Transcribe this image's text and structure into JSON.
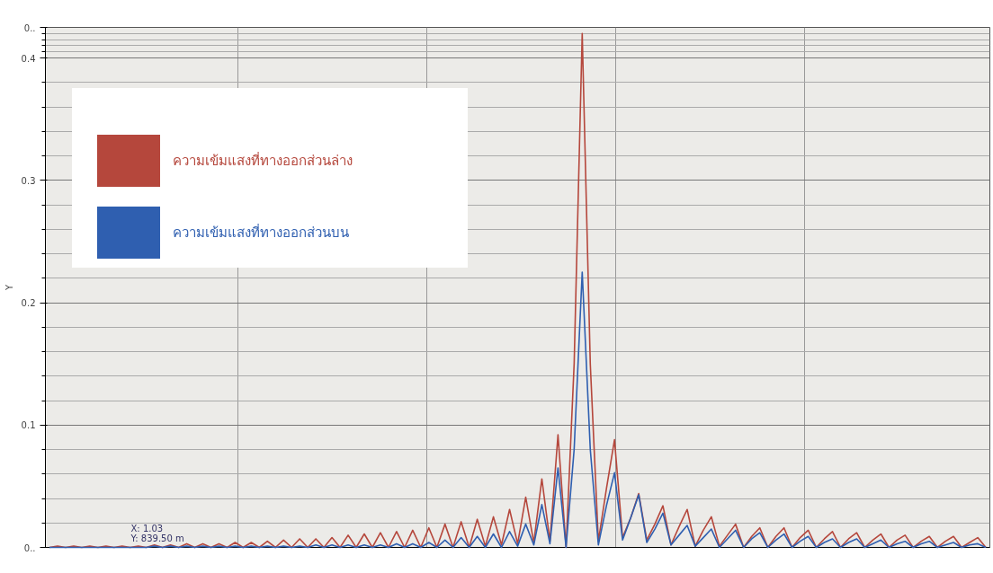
{
  "chart_data": {
    "type": "line",
    "ylabel": "Y",
    "categories": [
      null,
      null,
      null,
      null,
      null,
      null,
      null,
      null,
      null,
      null,
      null,
      null,
      null,
      null,
      null,
      null,
      null,
      null,
      null,
      null,
      null,
      null,
      null,
      null,
      null,
      null,
      null,
      null,
      null,
      null,
      null,
      null,
      null,
      null,
      null,
      null,
      null,
      null,
      null,
      null,
      null,
      null,
      null,
      null,
      null,
      null,
      null,
      null,
      null,
      null,
      null,
      null,
      null,
      null,
      null,
      null,
      null,
      null,
      null,
      null,
      null,
      null,
      null,
      null,
      null,
      null,
      null,
      null,
      null,
      null,
      null,
      null,
      null,
      null,
      null,
      null,
      null,
      null,
      null,
      null,
      null,
      null,
      null,
      null,
      null,
      null,
      null,
      null,
      null,
      null,
      null,
      null,
      null,
      null,
      null,
      null,
      null,
      null,
      null,
      null,
      null,
      null,
      null,
      null,
      null,
      null,
      null,
      null,
      null,
      null,
      null,
      null,
      null,
      null,
      null,
      null,
      null
    ],
    "series": [
      {
        "name": "ความเข้มแสงที่ทางออกส่วนล่าง",
        "color": "#b5473c",
        "values": [
          0,
          0.001,
          0,
          0.001,
          0,
          0.001,
          0,
          0.001,
          0,
          0.001,
          0,
          0.001,
          0,
          0.002,
          0,
          0.002,
          0,
          0.003,
          0,
          0.003,
          0,
          0.003,
          0,
          0.004,
          0,
          0.004,
          0,
          0.005,
          0,
          0.006,
          0,
          0.007,
          0,
          0.007,
          0,
          0.008,
          0,
          0.01,
          0,
          0.011,
          0,
          0.012,
          0,
          0.013,
          0,
          0.014,
          0,
          0.016,
          0,
          0.019,
          0,
          0.021,
          0,
          0.023,
          0.001,
          0.025,
          0.002,
          0.031,
          0.003,
          0.041,
          0.004,
          0.056,
          0.005,
          0.092,
          0,
          0.15,
          0.42,
          0.15,
          0.005,
          0.048,
          0.088,
          0.008,
          0.024,
          0.044,
          0.006,
          0.019,
          0.034,
          0.002,
          0.017,
          0.031,
          0.001,
          0.014,
          0.025,
          0.001,
          0.01,
          0.019,
          0,
          0.009,
          0.016,
          0,
          0.009,
          0.016,
          0,
          0.008,
          0.014,
          0,
          0.007,
          0.013,
          0,
          0.007,
          0.012,
          0,
          0.006,
          0.011,
          0,
          0.006,
          0.01,
          0,
          0.005,
          0.009,
          0,
          0.005,
          0.009,
          0,
          0.004,
          0.008,
          0
        ]
      },
      {
        "name": "ความเข้มแสงที่ทางออกส่วนบน",
        "color": "#2f5fb0",
        "values": [
          0,
          0,
          0,
          0,
          0,
          0,
          0,
          0,
          0,
          0,
          0,
          0,
          0,
          0.001,
          0,
          0.001,
          0,
          0.001,
          0,
          0.001,
          0,
          0.001,
          0,
          0.001,
          0,
          0.001,
          0,
          0.001,
          0,
          0.001,
          0,
          0.001,
          0,
          0.002,
          0,
          0.002,
          0,
          0.002,
          0,
          0.002,
          0,
          0.002,
          0,
          0.003,
          0,
          0.003,
          0,
          0.004,
          0,
          0.006,
          0,
          0.008,
          0,
          0.009,
          0,
          0.011,
          0,
          0.013,
          0.001,
          0.019,
          0.002,
          0.035,
          0.003,
          0.065,
          0,
          0.08,
          0.225,
          0.08,
          0.002,
          0.034,
          0.061,
          0.006,
          0.024,
          0.043,
          0.004,
          0.015,
          0.028,
          0.002,
          0.01,
          0.018,
          0.001,
          0.008,
          0.015,
          0,
          0.007,
          0.014,
          0,
          0.007,
          0.012,
          0,
          0.006,
          0.011,
          0,
          0.005,
          0.009,
          0,
          0.004,
          0.007,
          0,
          0.004,
          0.007,
          0,
          0.003,
          0.006,
          0,
          0.003,
          0.005,
          0,
          0.003,
          0.005,
          0,
          0.002,
          0.004,
          0,
          0.002,
          0.003,
          0
        ]
      }
    ],
    "ylim": [
      0,
      0.425
    ],
    "yticks": [
      {
        "value": 0,
        "label": "0.."
      },
      0.1,
      0.2,
      0.3,
      0.4,
      {
        "value": 0.425,
        "label": "0.."
      }
    ],
    "grid": true,
    "legend": "top left",
    "marker": "none",
    "line_style": "solid",
    "annotations": [
      "X: 1.03",
      "Y: 839.50 m"
    ]
  }
}
